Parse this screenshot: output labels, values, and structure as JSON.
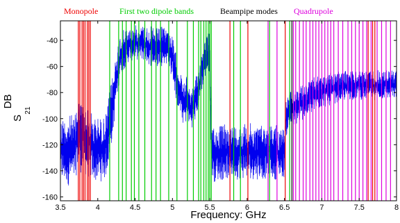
{
  "chart_data": {
    "type": "line",
    "title": "",
    "xlabel": "Frequency: GHz",
    "ylabel": "S21 DB",
    "ylabel_main": "S",
    "ylabel_sub": "21",
    "ylabel_super": "DB",
    "xlim": [
      3.5,
      8.0
    ],
    "ylim": [
      -163,
      -25
    ],
    "xticks": [
      3.5,
      4,
      4.5,
      5,
      5.5,
      6,
      6.5,
      7,
      7.5,
      8
    ],
    "xtick_labels": [
      "3.5",
      "4",
      "4.5",
      "5",
      "5.5",
      "6",
      "6.5",
      "7",
      "7.5",
      "8"
    ],
    "yticks": [
      -160,
      -140,
      -120,
      -100,
      -80,
      -60,
      -40
    ],
    "ytick_labels": [
      "-160",
      "-140",
      "-120",
      "-100",
      "-80",
      "-60",
      "-40"
    ],
    "grid": false,
    "colors": {
      "signal": "#0000ee",
      "monopole": "#ee0000",
      "dipole": "#00cc00",
      "beampipe": "#000000",
      "quadrupole": "#dd00dd",
      "axis": "#000000"
    },
    "band_labels": [
      {
        "key": "monopole",
        "text": "Monopole"
      },
      {
        "key": "dipole",
        "text": "First two dipole bands"
      },
      {
        "key": "beampipe",
        "text": "Beampipe modes"
      },
      {
        "key": "quadrupole",
        "text": "Quadrupole"
      }
    ],
    "mode_lines": {
      "monopole": [
        3.74,
        3.76,
        3.79,
        3.81,
        3.83,
        3.86,
        3.88,
        3.9,
        5.77,
        6.01,
        6.51,
        7.62,
        7.68,
        7.71
      ],
      "dipole": [
        4.16,
        4.28,
        4.33,
        4.38,
        4.45,
        4.49,
        4.55,
        4.63,
        4.72,
        4.78,
        4.84,
        4.95,
        5.06,
        5.2,
        5.28,
        5.35,
        5.38,
        5.42,
        5.45,
        5.48,
        5.5,
        5.52,
        5.82,
        5.91,
        6.3,
        6.57
      ],
      "beampipe": [
        6.6
      ],
      "quadrupole": [
        6.28,
        6.4,
        6.62,
        6.65,
        6.7,
        6.75,
        6.79,
        6.84,
        6.88,
        6.92,
        6.96,
        7.0,
        7.04,
        7.08,
        7.12,
        7.16,
        7.22,
        7.28,
        7.35,
        7.4,
        7.45,
        7.5,
        7.55,
        7.6,
        7.66,
        7.74,
        7.8,
        7.86,
        7.92
      ]
    },
    "series": [
      {
        "key": "signal",
        "style": "dense-noise-envelope",
        "x": [
          3.5,
          3.7,
          3.72,
          3.9,
          3.95,
          4.1,
          4.15,
          4.2,
          4.25,
          4.3,
          4.4,
          4.5,
          4.6,
          4.7,
          4.8,
          4.9,
          4.95,
          5.0,
          5.05,
          5.1,
          5.15,
          5.2,
          5.25,
          5.3,
          5.35,
          5.4,
          5.45,
          5.5,
          5.52,
          5.55,
          5.8,
          6.0,
          6.2,
          6.4,
          6.5,
          6.52,
          6.55,
          6.6,
          6.7,
          6.8,
          6.9,
          7.0,
          7.2,
          7.4,
          7.6,
          7.8,
          8.0
        ],
        "upper": [
          -96,
          -96,
          -80,
          -93,
          -97,
          -98,
          -80,
          -64,
          -45,
          -33,
          -30,
          -28,
          -27,
          -29,
          -30,
          -28,
          -30,
          -36,
          -50,
          -62,
          -72,
          -66,
          -78,
          -72,
          -58,
          -42,
          -35,
          -32,
          -100,
          -104,
          -103,
          -103,
          -103,
          -103,
          -104,
          -86,
          -80,
          -78,
          -75,
          -72,
          -68,
          -66,
          -64,
          -62,
          -62,
          -62,
          -62
        ],
        "lower": [
          -152,
          -152,
          -140,
          -148,
          -150,
          -148,
          -135,
          -115,
          -90,
          -68,
          -58,
          -55,
          -56,
          -60,
          -62,
          -58,
          -62,
          -70,
          -88,
          -98,
          -106,
          -103,
          -108,
          -104,
          -93,
          -78,
          -68,
          -66,
          -145,
          -149,
          -147,
          -147,
          -147,
          -147,
          -146,
          -115,
          -110,
          -108,
          -104,
          -100,
          -96,
          -93,
          -88,
          -86,
          -86,
          -86,
          -86
        ]
      }
    ]
  }
}
